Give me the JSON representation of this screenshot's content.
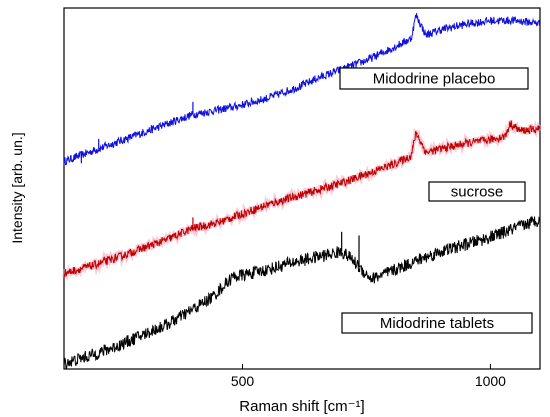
{
  "chart_data": {
    "type": "line",
    "xlabel": "Raman shift [cm⁻¹]",
    "ylabel": "Intensity [arb. un.]",
    "xlim": [
      140,
      1100
    ],
    "xticks": [
      500,
      1000
    ],
    "y_ticks_shown": false,
    "grid": false,
    "legend": "none",
    "series": [
      {
        "annotation": "Midodrine placebo",
        "color": "#1010e0",
        "x": [
          140,
          250,
          300,
          350,
          400,
          480,
          550,
          620,
          650,
          700,
          750,
          800,
          840,
          850,
          870,
          900,
          950,
          1000,
          1050,
          1100
        ],
        "y": [
          2.3,
          2.52,
          2.62,
          2.72,
          2.82,
          2.9,
          3.0,
          3.14,
          3.22,
          3.32,
          3.42,
          3.55,
          3.66,
          3.92,
          3.7,
          3.76,
          3.82,
          3.86,
          3.86,
          3.83
        ],
        "peaks": [
          [
            175,
            2.28
          ],
          [
            210,
            2.55
          ],
          [
            400,
            2.96
          ],
          [
            850,
            3.92
          ]
        ]
      },
      {
        "annotation": "sucrose",
        "color": "#c00000",
        "x": [
          140,
          200,
          250,
          300,
          350,
          400,
          450,
          500,
          550,
          600,
          650,
          700,
          750,
          800,
          840,
          850,
          870,
          900,
          950,
          1000,
          1030,
          1040,
          1060,
          1100
        ],
        "y": [
          1.06,
          1.15,
          1.24,
          1.34,
          1.44,
          1.56,
          1.62,
          1.72,
          1.82,
          1.9,
          1.98,
          2.06,
          2.16,
          2.26,
          2.36,
          2.62,
          2.4,
          2.44,
          2.5,
          2.54,
          2.58,
          2.72,
          2.64,
          2.66
        ],
        "peaks": [
          [
            400,
            1.68
          ],
          [
            852,
            2.62
          ],
          [
            1040,
            2.72
          ]
        ]
      },
      {
        "annotation": "Midodrine tablets",
        "color": "#000000",
        "x": [
          140,
          200,
          250,
          300,
          350,
          400,
          440,
          480,
          500,
          550,
          600,
          650,
          700,
          720,
          740,
          760,
          800,
          850,
          900,
          950,
          1000,
          1050,
          1100
        ],
        "y": [
          0.06,
          0.16,
          0.26,
          0.38,
          0.5,
          0.66,
          0.8,
          1.02,
          1.04,
          1.1,
          1.18,
          1.24,
          1.3,
          1.22,
          1.1,
          1.0,
          1.08,
          1.2,
          1.3,
          1.38,
          1.46,
          1.56,
          1.66
        ],
        "peaks": [
          [
            700,
            1.52
          ],
          [
            735,
            1.48
          ]
        ]
      }
    ]
  }
}
